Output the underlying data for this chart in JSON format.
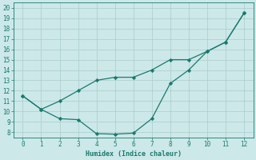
{
  "line1_x": [
    0,
    1,
    2,
    3,
    4,
    5,
    6,
    7,
    8,
    9,
    10,
    11,
    12
  ],
  "line1_y": [
    11.5,
    10.2,
    11.0,
    12.0,
    13.0,
    13.3,
    13.3,
    14.0,
    15.0,
    15.0,
    15.8,
    16.7,
    19.5
  ],
  "line2_x": [
    0,
    1,
    2,
    3,
    4,
    5,
    6,
    7,
    8,
    9,
    10,
    11,
    12
  ],
  "line2_y": [
    11.5,
    10.2,
    9.3,
    9.2,
    7.85,
    7.8,
    7.9,
    9.3,
    12.7,
    14.0,
    15.8,
    16.7,
    19.5
  ],
  "line_color": "#1a7a6e",
  "bg_color": "#cce8e8",
  "grid_color": "#aacccc",
  "xlabel": "Humidex (Indice chaleur)",
  "xlim": [
    -0.5,
    12.5
  ],
  "ylim": [
    7.5,
    20.5
  ],
  "yticks": [
    8,
    9,
    10,
    11,
    12,
    13,
    14,
    15,
    16,
    17,
    18,
    19,
    20
  ],
  "xticks": [
    0,
    1,
    2,
    3,
    4,
    5,
    6,
    7,
    8,
    9,
    10,
    11,
    12
  ],
  "marker": "D",
  "marker_size": 2.2,
  "linewidth": 0.9,
  "tick_fontsize": 5.5,
  "xlabel_fontsize": 6.0
}
